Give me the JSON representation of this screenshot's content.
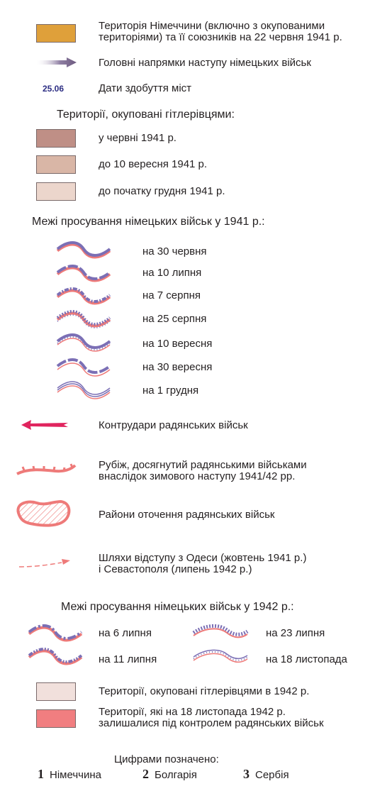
{
  "colors": {
    "germany": "#dfa03a",
    "occupied_june": "#bf8f86",
    "occupied_sept": "#d9b6a6",
    "occupied_dec": "#ecd6cc",
    "occupied_1942": "#f1e0dc",
    "soviet_1942": "#f17e80",
    "front_blue": "#7b6fb5",
    "front_red": "#ee7a79",
    "counter_arrow": "#e0245e",
    "date_text": "#2d2e83"
  },
  "legend": {
    "germany_area": "Територія Німеччини (включно з окупованими\nтериторіями) та її союзників на 22 червня 1941 р.",
    "main_directions": "Головні напрямки наступу німецьких військ",
    "date_sample": "25.06",
    "city_dates": "Дати здобуття міст",
    "occupied_heading": "Території, окуповані гітлерівцями:",
    "occupied_items": [
      "у червні 1941 р.",
      "до 10 вересня 1941 р.",
      "до початку грудня 1941 р."
    ],
    "advance_1941_heading": "Межі просування німецьких військ у 1941 р.:",
    "advance_1941_items": [
      "на 30 червня",
      "на 10 липня",
      "на 7 серпня",
      "на 25 серпня",
      "на 10 вересня",
      "на 30 вересня",
      "на 1 грудня"
    ],
    "counterattacks": "Контрудари радянських військ",
    "winter_line": "Рубіж, досягнутий радянськими військами\nвнаслідок зимового наступу 1941/42 рр.",
    "encirclement": "Райони оточення радянських військ",
    "retreat_routes": "Шляхи відступу з Одеси (жовтень 1941 р.)\nі Севастополя (липень 1942 р.)",
    "advance_1942_heading": "Межі просування німецьких військ у 1942 р.:",
    "advance_1942_items": [
      "на 6 липня",
      "на 23 липня",
      "на 11 липня",
      "на 18 листопада"
    ],
    "occupied_1942": "Території, окуповані гітлерівцями в 1942 р.",
    "soviet_control_1942": "Території, які на 18 листопада 1942 р.\nзалишалися під контролем радянських військ",
    "numbers_heading": "Цифрами позначено:",
    "numbers": [
      {
        "num": "1",
        "label": "Німеччина"
      },
      {
        "num": "2",
        "label": "Болгарія"
      },
      {
        "num": "3",
        "label": "Сербія"
      }
    ]
  }
}
